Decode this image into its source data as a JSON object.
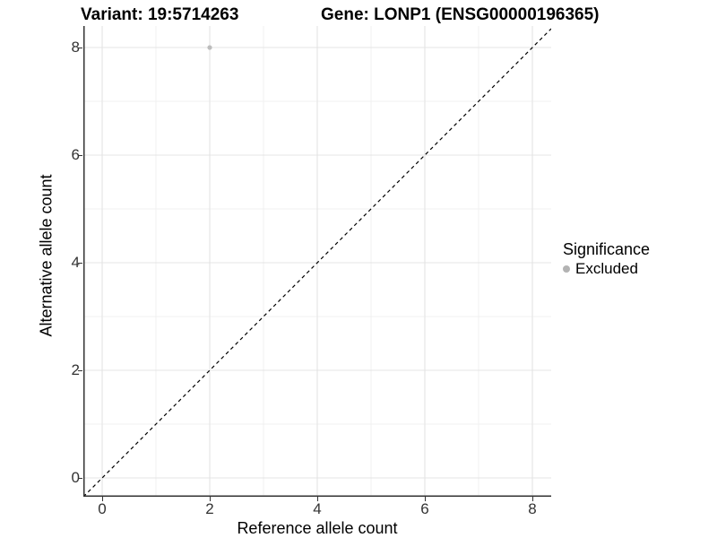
{
  "figure": {
    "background_color": "#ffffff"
  },
  "chart_data": {
    "type": "scatter",
    "title_left": "Variant: 19:5714263",
    "title_right": "Gene: LONP1 (ENSG00000196365)",
    "xlabel": "Reference allele count",
    "ylabel": "Alternative allele count",
    "xlim": [
      -0.35,
      8.35
    ],
    "ylim": [
      -0.35,
      8.4
    ],
    "x_major_ticks": [
      0,
      2,
      4,
      6,
      8
    ],
    "x_minor_ticks": [
      1,
      3,
      5,
      7
    ],
    "y_major_ticks": [
      0,
      2,
      4,
      6,
      8
    ],
    "y_minor_ticks": [
      1,
      3,
      5,
      7
    ],
    "grid": "major-and-minor",
    "identity_line": {
      "slope": 1,
      "intercept": 0,
      "style": "dashed",
      "color": "#000000"
    },
    "series": [
      {
        "name": "Excluded",
        "color": "#bcbcbc",
        "point_radius": 2.6,
        "points": [
          [
            2,
            8
          ]
        ]
      }
    ],
    "legend": {
      "title": "Significance",
      "position": "right",
      "items": [
        {
          "label": "Excluded",
          "color": "#b3b3b3"
        }
      ]
    },
    "style": {
      "grid_major_color": "#e4e4e4",
      "grid_minor_color": "#f1f1f1",
      "axis_line_color": "#333333",
      "tick_mark_color": "#333333",
      "tick_label_color": "#333333",
      "title_color": "#000000"
    }
  }
}
